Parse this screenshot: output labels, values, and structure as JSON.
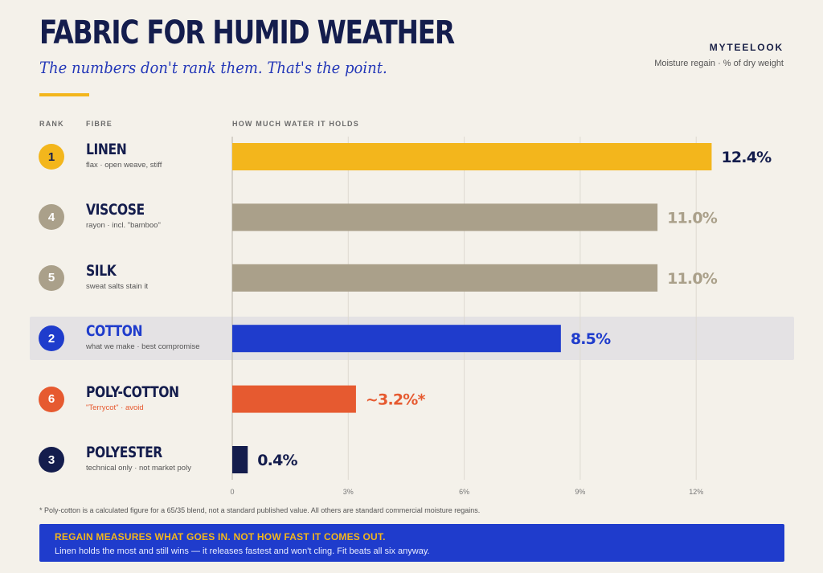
{
  "header": {
    "title": "FABRIC FOR HUMID WEATHER",
    "subtitle": "The numbers don't rank them. That's the point.",
    "brand": "MYTEELOOK",
    "meta": "Moisture regain · % of dry weight",
    "col_rank": "RANK",
    "col_fibre": "FIBRE",
    "col_value": "HOW MUCH WATER IT HOLDS"
  },
  "colors": {
    "gold": "#f3b61c",
    "taupe": "#aaa08a",
    "blue": "#1f3ccc",
    "orange": "#e65a30",
    "navy": "#141d4d"
  },
  "chart_data": {
    "type": "bar",
    "orientation": "horizontal",
    "categories": [
      "LINEN",
      "VISCOSE",
      "SILK",
      "COTTON",
      "POLY-COTTON",
      "POLYESTER"
    ],
    "values": [
      12.4,
      11.0,
      11.0,
      8.5,
      3.2,
      0.4
    ],
    "value_labels": [
      "12.4%",
      "11.0%",
      "11.0%",
      "8.5%",
      "~3.2%*",
      "0.4%"
    ],
    "ranks": [
      "1",
      "4",
      "5",
      "2",
      "6",
      "3"
    ],
    "descriptions": [
      "flax · open weave, stiff",
      "rayon · incl. \"bamboo\"",
      "sweat salts stain it",
      "what we make · best compromise",
      "\"Terrycot\" · avoid",
      "technical only · not market poly"
    ],
    "bar_colors": [
      "#f3b61c",
      "#aaa08a",
      "#aaa08a",
      "#1f3ccc",
      "#e65a30",
      "#141d4d"
    ],
    "label_colors": [
      "#141d4d",
      "#aaa08a",
      "#aaa08a",
      "#1f3ccc",
      "#e65a30",
      "#141d4d"
    ],
    "name_colors": [
      "#141d4d",
      "#141d4d",
      "#141d4d",
      "#1f3ccc",
      "#141d4d",
      "#141d4d"
    ],
    "desc_colors": [
      "#555555",
      "#555555",
      "#555555",
      "#555555",
      "#e65a30",
      "#555555"
    ],
    "highlighted_category": "COTTON",
    "x_ticks": [
      0,
      3,
      6,
      9,
      12
    ],
    "x_tick_labels": [
      "0",
      "3%",
      "6%",
      "9%",
      "12%"
    ],
    "xlim": [
      0,
      14
    ],
    "grid": true,
    "legend": "none"
  },
  "footnote": "* Poly-cotton is a calculated figure for a 65/35 blend, not a standard published value. All others are standard commercial moisture regains.",
  "banner": {
    "headline": "REGAIN MEASURES WHAT GOES IN. NOT HOW FAST IT COMES OUT.",
    "body": "Linen holds the most and still wins — it releases fastest and won't cling. Fit beats all six anyway."
  }
}
